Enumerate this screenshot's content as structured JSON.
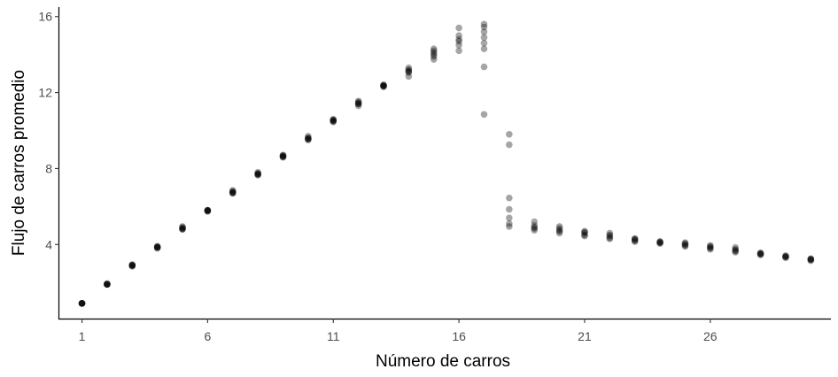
{
  "chart_data": {
    "type": "scatter",
    "title": "",
    "xlabel": "Número de carros",
    "ylabel": "Flujo de carros promedio",
    "xlim": [
      0.1,
      30.8
    ],
    "ylim": [
      0.1,
      16.5
    ],
    "x_ticks": [
      1,
      6,
      11,
      16,
      21,
      26
    ],
    "y_ticks": [
      4,
      8,
      12,
      16
    ],
    "grid": false,
    "legend": "none",
    "point_color": "#000000",
    "point_opacity": 0.35,
    "points": [
      [
        1,
        0.9
      ],
      [
        1,
        0.9
      ],
      [
        1,
        0.9
      ],
      [
        1,
        0.9
      ],
      [
        1,
        0.9
      ],
      [
        1,
        0.9
      ],
      [
        2,
        1.9
      ],
      [
        2,
        1.9
      ],
      [
        2,
        1.9
      ],
      [
        2,
        1.9
      ],
      [
        2,
        1.95
      ],
      [
        2,
        1.9
      ],
      [
        3,
        2.85
      ],
      [
        3,
        2.9
      ],
      [
        3,
        2.9
      ],
      [
        3,
        2.9
      ],
      [
        3,
        2.95
      ],
      [
        3,
        2.9
      ],
      [
        4,
        3.8
      ],
      [
        4,
        3.85
      ],
      [
        4,
        3.9
      ],
      [
        4,
        3.85
      ],
      [
        4,
        3.9
      ],
      [
        4,
        3.85
      ],
      [
        5,
        4.8
      ],
      [
        5,
        4.85
      ],
      [
        5,
        4.9
      ],
      [
        5,
        4.8
      ],
      [
        5,
        4.95
      ],
      [
        5,
        4.85
      ],
      [
        6,
        5.75
      ],
      [
        6,
        5.8
      ],
      [
        6,
        5.8
      ],
      [
        6,
        5.75
      ],
      [
        6,
        5.8
      ],
      [
        6,
        5.8
      ],
      [
        7,
        6.7
      ],
      [
        7,
        6.75
      ],
      [
        7,
        6.8
      ],
      [
        7,
        6.85
      ],
      [
        7,
        6.7
      ],
      [
        7,
        6.75
      ],
      [
        8,
        7.65
      ],
      [
        8,
        7.7
      ],
      [
        8,
        7.75
      ],
      [
        8,
        7.8
      ],
      [
        8,
        7.7
      ],
      [
        8,
        7.7
      ],
      [
        9,
        8.6
      ],
      [
        9,
        8.65
      ],
      [
        9,
        8.7
      ],
      [
        9,
        8.6
      ],
      [
        9,
        8.7
      ],
      [
        9,
        8.65
      ],
      [
        10,
        9.5
      ],
      [
        10,
        9.55
      ],
      [
        10,
        9.6
      ],
      [
        10,
        9.7
      ],
      [
        10,
        9.6
      ],
      [
        10,
        9.55
      ],
      [
        11,
        10.45
      ],
      [
        11,
        10.5
      ],
      [
        11,
        10.55
      ],
      [
        11,
        10.6
      ],
      [
        11,
        10.5
      ],
      [
        11,
        10.55
      ],
      [
        12,
        11.3
      ],
      [
        12,
        11.4
      ],
      [
        12,
        11.45
      ],
      [
        12,
        11.5
      ],
      [
        12,
        11.55
      ],
      [
        12,
        11.4
      ],
      [
        13,
        12.3
      ],
      [
        13,
        12.35
      ],
      [
        13,
        12.4
      ],
      [
        13,
        12.35
      ],
      [
        13,
        12.4
      ],
      [
        13,
        12.35
      ],
      [
        14,
        12.85
      ],
      [
        14,
        13.05
      ],
      [
        14,
        13.15
      ],
      [
        14,
        13.2
      ],
      [
        14,
        13.3
      ],
      [
        14,
        13.1
      ],
      [
        15,
        13.75
      ],
      [
        15,
        13.9
      ],
      [
        15,
        14.0
      ],
      [
        15,
        14.1
      ],
      [
        15,
        14.2
      ],
      [
        15,
        14.3
      ],
      [
        16,
        14.2
      ],
      [
        16,
        14.5
      ],
      [
        16,
        14.7
      ],
      [
        16,
        14.8
      ],
      [
        16,
        15.0
      ],
      [
        16,
        15.4
      ],
      [
        17,
        10.85
      ],
      [
        17,
        13.35
      ],
      [
        17,
        14.3
      ],
      [
        17,
        14.6
      ],
      [
        17,
        14.9
      ],
      [
        17,
        15.2
      ],
      [
        17,
        15.45
      ],
      [
        17,
        15.6
      ],
      [
        18,
        4.95
      ],
      [
        18,
        5.1
      ],
      [
        18,
        5.4
      ],
      [
        18,
        5.85
      ],
      [
        18,
        6.45
      ],
      [
        18,
        9.25
      ],
      [
        18,
        9.8
      ],
      [
        19,
        4.75
      ],
      [
        19,
        4.85
      ],
      [
        19,
        4.9
      ],
      [
        19,
        5.0
      ],
      [
        19,
        5.2
      ],
      [
        20,
        4.6
      ],
      [
        20,
        4.7
      ],
      [
        20,
        4.75
      ],
      [
        20,
        4.85
      ],
      [
        20,
        4.95
      ],
      [
        21,
        4.45
      ],
      [
        21,
        4.5
      ],
      [
        21,
        4.6
      ],
      [
        21,
        4.65
      ],
      [
        21,
        4.7
      ],
      [
        22,
        4.3
      ],
      [
        22,
        4.35
      ],
      [
        22,
        4.45
      ],
      [
        22,
        4.5
      ],
      [
        22,
        4.6
      ],
      [
        23,
        4.15
      ],
      [
        23,
        4.2
      ],
      [
        23,
        4.25
      ],
      [
        23,
        4.3
      ],
      [
        23,
        4.3
      ],
      [
        24,
        4.05
      ],
      [
        24,
        4.1
      ],
      [
        24,
        4.1
      ],
      [
        24,
        4.15
      ],
      [
        24,
        4.15
      ],
      [
        25,
        3.9
      ],
      [
        25,
        3.95
      ],
      [
        25,
        4.0
      ],
      [
        25,
        4.05
      ],
      [
        25,
        4.1
      ],
      [
        26,
        3.75
      ],
      [
        26,
        3.8
      ],
      [
        26,
        3.85
      ],
      [
        26,
        3.9
      ],
      [
        26,
        3.95
      ],
      [
        27,
        3.6
      ],
      [
        27,
        3.65
      ],
      [
        27,
        3.7
      ],
      [
        27,
        3.75
      ],
      [
        27,
        3.85
      ],
      [
        28,
        3.45
      ],
      [
        28,
        3.5
      ],
      [
        28,
        3.5
      ],
      [
        28,
        3.55
      ],
      [
        28,
        3.55
      ],
      [
        29,
        3.3
      ],
      [
        29,
        3.35
      ],
      [
        29,
        3.35
      ],
      [
        29,
        3.4
      ],
      [
        29,
        3.4
      ],
      [
        30,
        3.15
      ],
      [
        30,
        3.2
      ],
      [
        30,
        3.2
      ],
      [
        30,
        3.25
      ],
      [
        30,
        3.25
      ]
    ]
  }
}
